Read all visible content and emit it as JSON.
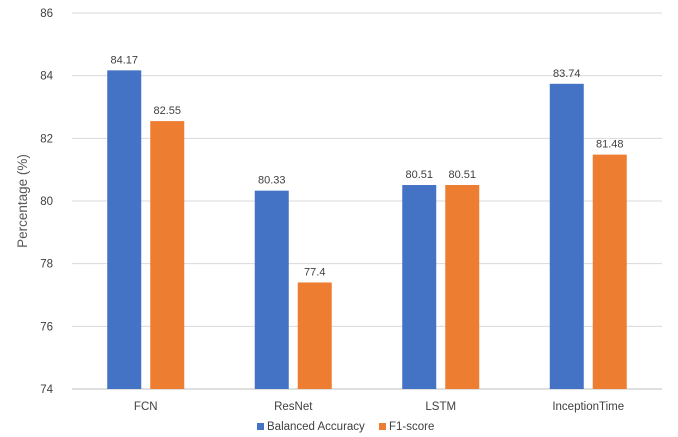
{
  "chart_data": {
    "type": "bar",
    "title": "",
    "xlabel": "",
    "ylabel": "Percentage (%)",
    "categories": [
      "FCN",
      "ResNet",
      "LSTM",
      "InceptionTime"
    ],
    "series": [
      {
        "name": "Balanced Accuracy",
        "color": "#4472C4",
        "values": [
          84.17,
          80.33,
          80.51,
          83.74
        ]
      },
      {
        "name": "F1-score",
        "color": "#ED7D31",
        "values": [
          82.55,
          77.4,
          80.51,
          81.48
        ]
      }
    ],
    "ylim": [
      74,
      86
    ],
    "yticks": [
      74,
      76,
      78,
      80,
      82,
      84,
      86
    ],
    "grid": true,
    "gridColor": "#d9d9d9",
    "legend": "bottom-center"
  }
}
